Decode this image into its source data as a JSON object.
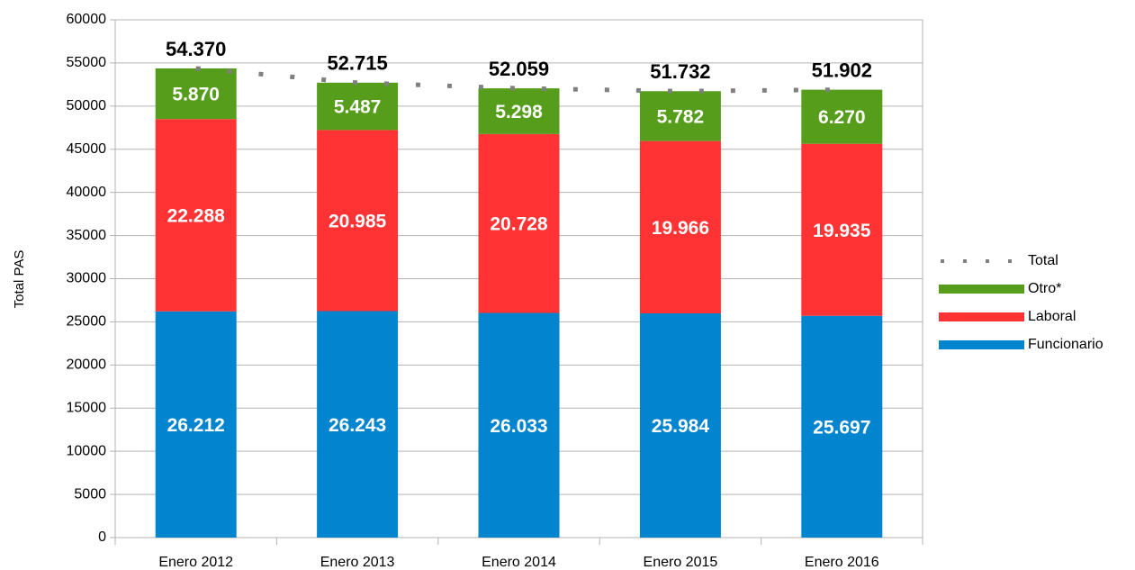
{
  "chart_data": {
    "type": "bar",
    "stacked": true,
    "y_label": "Total PAS",
    "categories": [
      "Enero 2012",
      "Enero 2013",
      "Enero 2014",
      "Enero 2015",
      "Enero 2016"
    ],
    "ylim": [
      0,
      60000
    ],
    "yticks": [
      0,
      5000,
      10000,
      15000,
      20000,
      25000,
      30000,
      35000,
      40000,
      45000,
      50000,
      55000,
      60000
    ],
    "grid": true,
    "legend": "right",
    "series": [
      {
        "name": "Funcionario",
        "color": "#0284ce",
        "values": [
          26212,
          26243,
          26033,
          25984,
          25697
        ],
        "value_labels": [
          "26.212",
          "26.243",
          "26.033",
          "25.984",
          "25.697"
        ]
      },
      {
        "name": "Laboral",
        "color": "#ff3333",
        "values": [
          22288,
          20985,
          20728,
          19966,
          19935
        ],
        "value_labels": [
          "22.288",
          "20.985",
          "20.728",
          "19.966",
          "19.935"
        ]
      },
      {
        "name": "Otro*",
        "color": "#579d1c",
        "values": [
          5870,
          5487,
          5298,
          5782,
          6270
        ],
        "value_labels": [
          "5.870",
          "5.487",
          "5.298",
          "5.782",
          "6.270"
        ]
      },
      {
        "name": "Total",
        "type": "line",
        "dash": "dotted",
        "color": "#808080",
        "values": [
          54370,
          52715,
          52059,
          51732,
          51902
        ],
        "value_labels": [
          "54.370",
          "52.715",
          "52.059",
          "51.732",
          "51.902"
        ]
      }
    ]
  }
}
